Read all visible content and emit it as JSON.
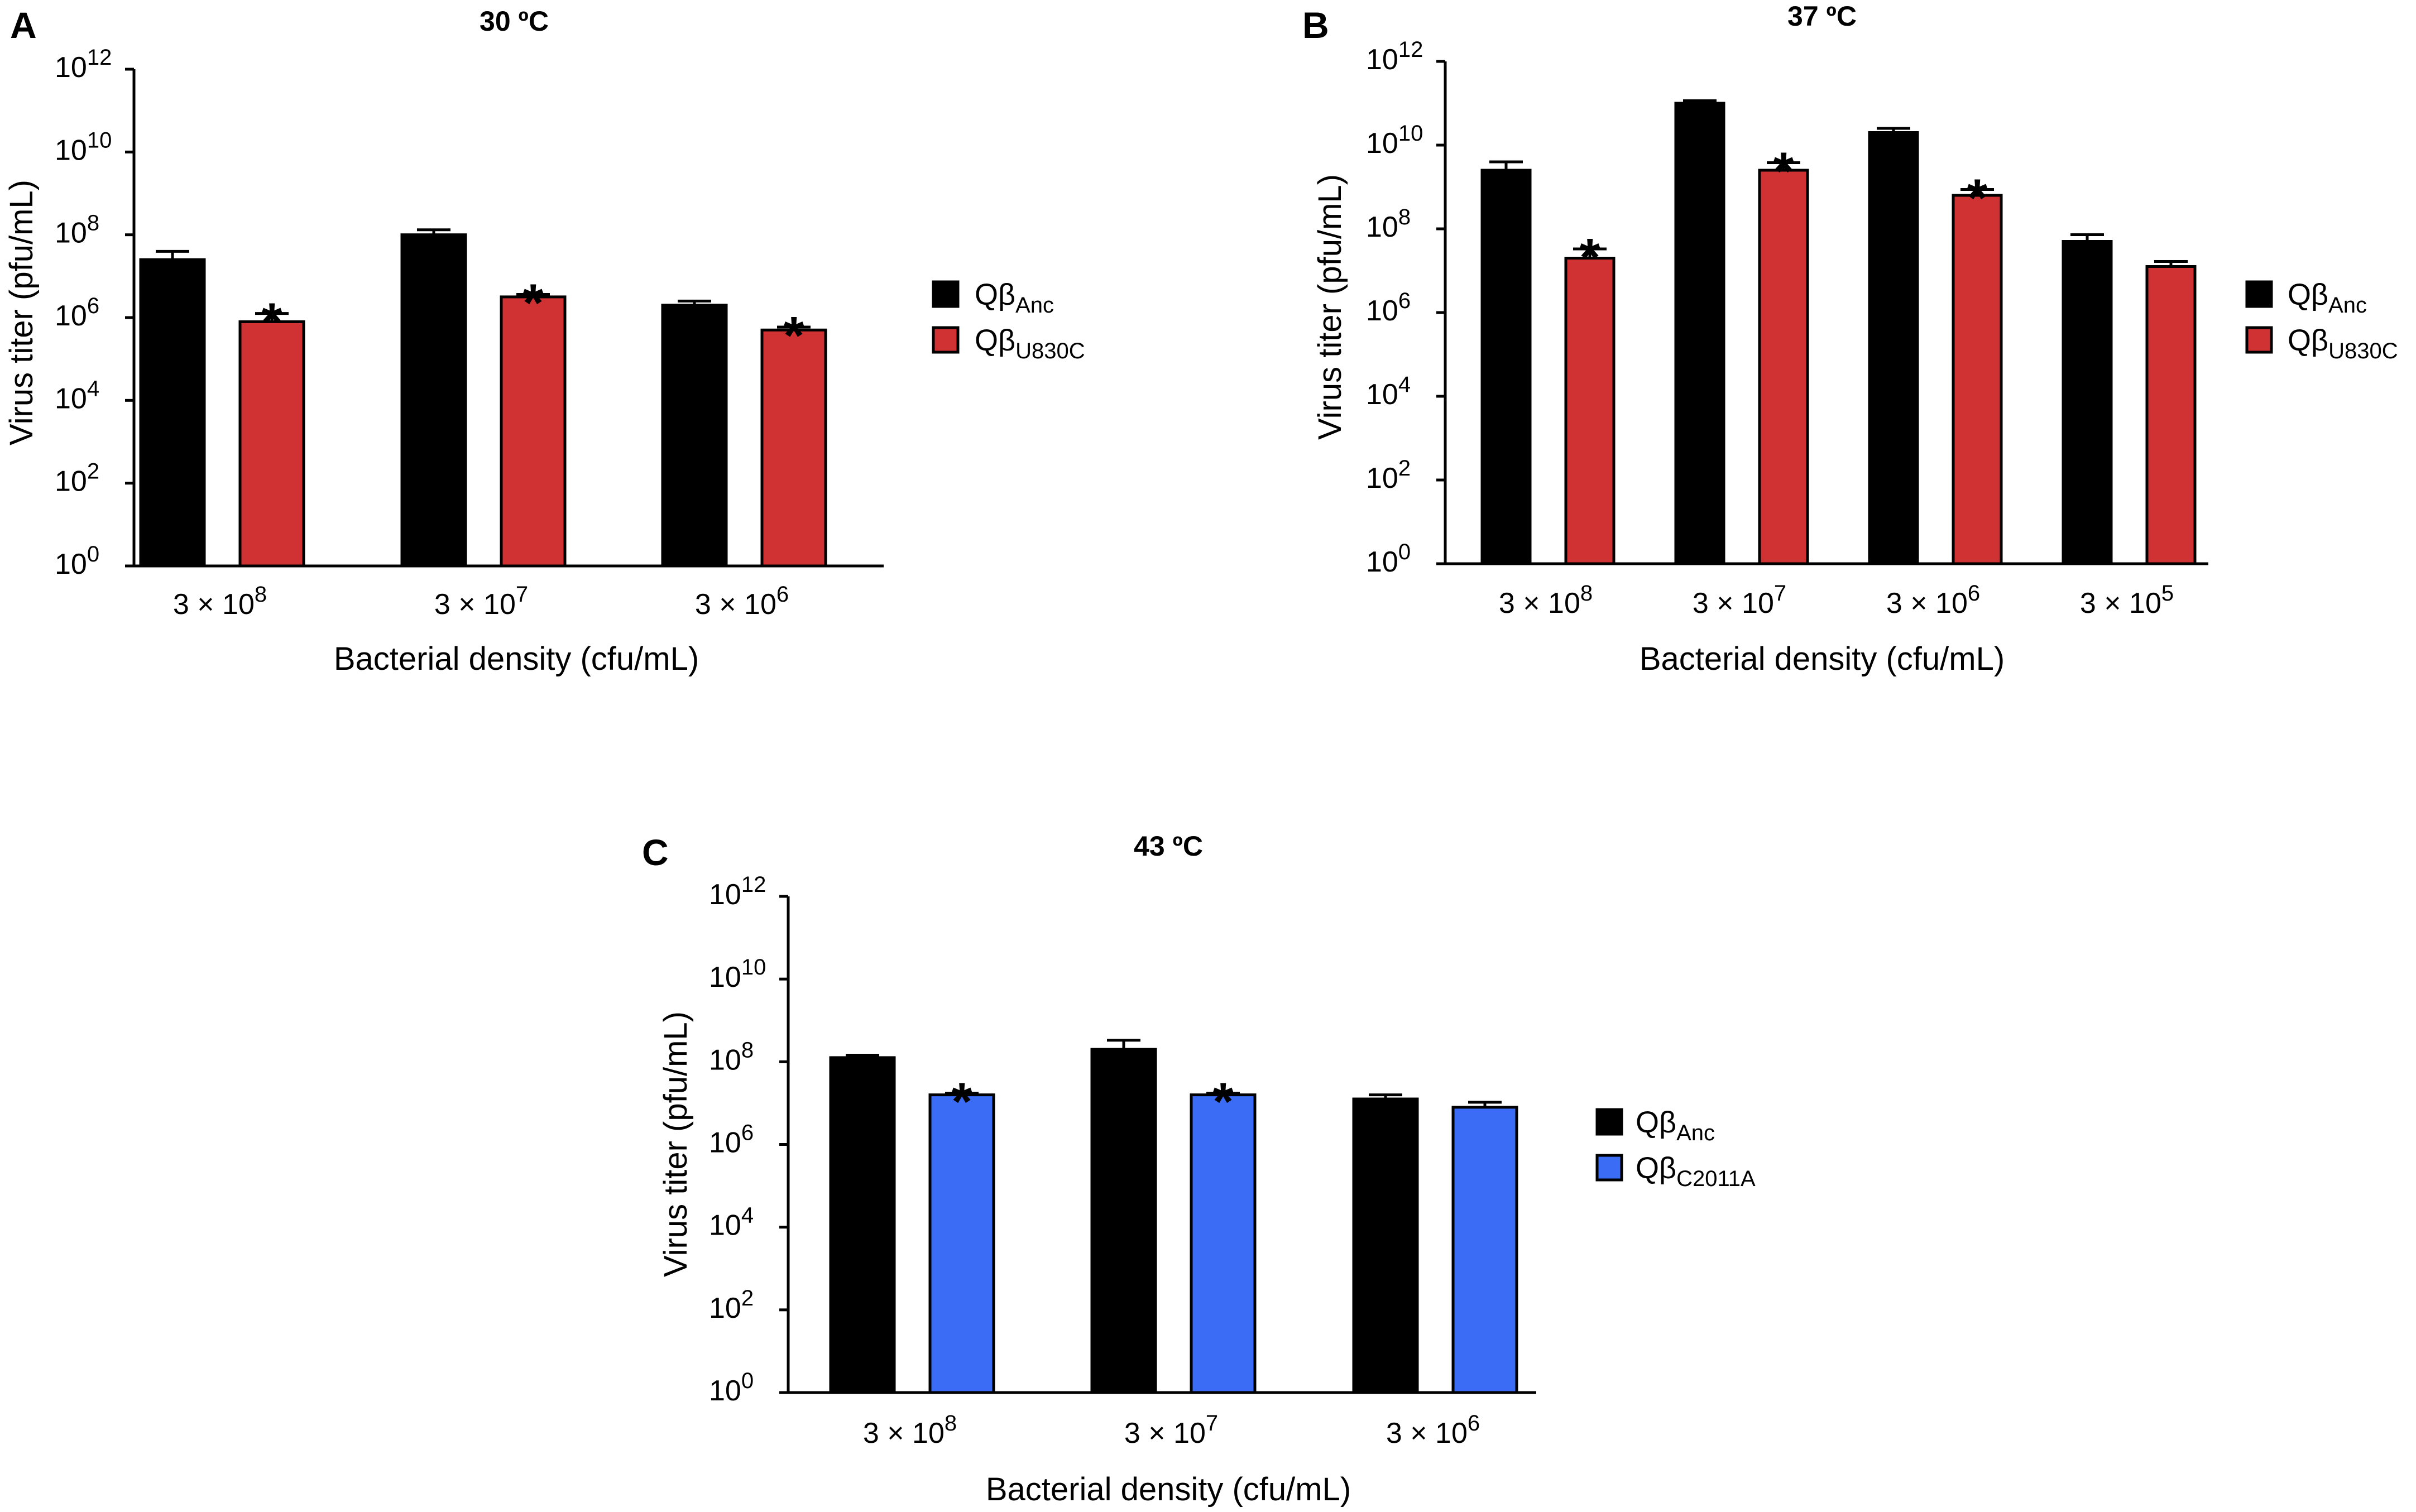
{
  "chart_data": [
    {
      "type": "bar",
      "panel": "A",
      "title": "30 ºC",
      "xlabel": "Bacterial density (cfu/mL)",
      "ylabel": "Virus titer (pfu/mL)",
      "yscale": "log10",
      "ylim_exponent": [
        0,
        12
      ],
      "yticks": [
        {
          "base": "10",
          "exp": "0"
        },
        {
          "base": "10",
          "exp": "2"
        },
        {
          "base": "10",
          "exp": "4"
        },
        {
          "base": "10",
          "exp": "6"
        },
        {
          "base": "10",
          "exp": "8"
        },
        {
          "base": "10",
          "exp": "10"
        },
        {
          "base": "10",
          "exp": "12"
        }
      ],
      "categories": [
        {
          "base": "3 × 10",
          "exp": "8"
        },
        {
          "base": "3 × 10",
          "exp": "7"
        },
        {
          "base": "3 × 10",
          "exp": "6"
        }
      ],
      "series": [
        {
          "name": "Qβ",
          "sub": "Anc",
          "color": "#000000",
          "values_log10": [
            7.4,
            8.0,
            6.3
          ],
          "error_log10": [
            0.2,
            0.12,
            0.1
          ],
          "significant": [
            false,
            false,
            false
          ]
        },
        {
          "name": "Qβ",
          "sub": "U830C",
          "color": "#d03234",
          "values_log10": [
            5.9,
            6.5,
            5.7
          ],
          "error_log10": [
            0.2,
            0.06,
            0.07
          ],
          "significant": [
            true,
            true,
            true
          ]
        }
      ],
      "significance_mark": "*"
    },
    {
      "type": "bar",
      "panel": "B",
      "title": "37 ºC",
      "xlabel": "Bacterial density (cfu/mL)",
      "ylabel": "Virus titer (pfu/mL)",
      "yscale": "log10",
      "ylim_exponent": [
        0,
        12
      ],
      "yticks": [
        {
          "base": "10",
          "exp": "0"
        },
        {
          "base": "10",
          "exp": "2"
        },
        {
          "base": "10",
          "exp": "4"
        },
        {
          "base": "10",
          "exp": "6"
        },
        {
          "base": "10",
          "exp": "8"
        },
        {
          "base": "10",
          "exp": "10"
        },
        {
          "base": "10",
          "exp": "12"
        }
      ],
      "categories": [
        {
          "base": "3 × 10",
          "exp": "8"
        },
        {
          "base": "3 × 10",
          "exp": "7"
        },
        {
          "base": "3 × 10",
          "exp": "6"
        },
        {
          "base": "3 × 10",
          "exp": "5"
        }
      ],
      "series": [
        {
          "name": "Qβ",
          "sub": "Anc",
          "color": "#000000",
          "values_log10": [
            9.4,
            11.0,
            10.3,
            7.7
          ],
          "error_log10": [
            0.2,
            0.06,
            0.1,
            0.16
          ],
          "significant": [
            false,
            false,
            false,
            false
          ]
        },
        {
          "name": "Qβ",
          "sub": "U830C",
          "color": "#d03234",
          "values_log10": [
            7.3,
            9.4,
            8.8,
            7.1
          ],
          "error_log10": [
            0.22,
            0.18,
            0.14,
            0.12
          ],
          "significant": [
            true,
            true,
            true,
            false
          ]
        }
      ],
      "significance_mark": "*"
    },
    {
      "type": "bar",
      "panel": "C",
      "title": "43 ºC",
      "xlabel": "Bacterial density (cfu/mL)",
      "ylabel": "Virus titer (pfu/mL)",
      "yscale": "log10",
      "ylim_exponent": [
        0,
        12
      ],
      "yticks": [
        {
          "base": "10",
          "exp": "0"
        },
        {
          "base": "10",
          "exp": "2"
        },
        {
          "base": "10",
          "exp": "4"
        },
        {
          "base": "10",
          "exp": "6"
        },
        {
          "base": "10",
          "exp": "8"
        },
        {
          "base": "10",
          "exp": "10"
        },
        {
          "base": "10",
          "exp": "12"
        }
      ],
      "categories": [
        {
          "base": "3 × 10",
          "exp": "8"
        },
        {
          "base": "3 × 10",
          "exp": "7"
        },
        {
          "base": "3 × 10",
          "exp": "6"
        }
      ],
      "series": [
        {
          "name": "Qβ",
          "sub": "Anc",
          "color": "#000000",
          "values_log10": [
            8.1,
            8.3,
            7.1
          ],
          "error_log10": [
            0.06,
            0.22,
            0.1
          ],
          "significant": [
            false,
            false,
            false
          ]
        },
        {
          "name": "Qβ",
          "sub": "C2011A",
          "color": "#3a6cf5",
          "values_log10": [
            7.2,
            7.2,
            6.9
          ],
          "error_log10": [
            0.04,
            0.04,
            0.12
          ],
          "significant": [
            true,
            true,
            false
          ]
        }
      ],
      "significance_mark": "*"
    }
  ]
}
